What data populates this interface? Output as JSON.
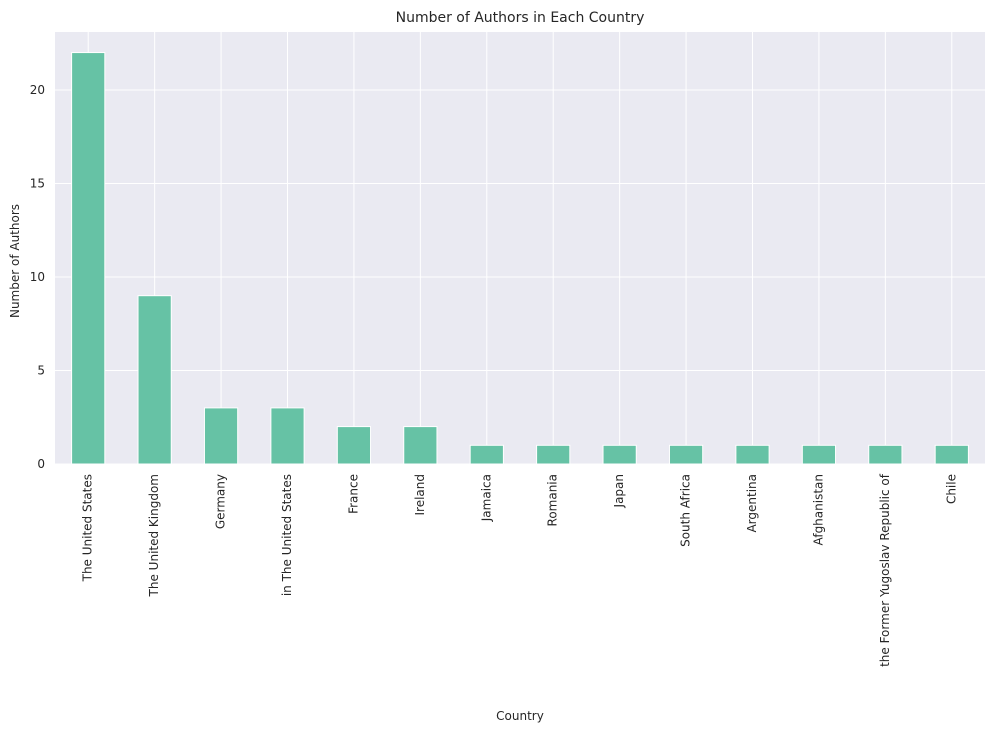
{
  "chart_data": {
    "type": "bar",
    "title": "Number of Authors in Each Country",
    "xlabel": "Country",
    "ylabel": "Number of Authors",
    "categories": [
      "The United States",
      "The United Kingdom",
      "Germany",
      "in The United States",
      "France",
      "Ireland",
      "Jamaica",
      "Romania",
      "Japan",
      "South Africa",
      "Argentina",
      "Afghanistan",
      "the Former Yugoslav Republic of",
      "Chile"
    ],
    "values": [
      22,
      9,
      3,
      3,
      2,
      2,
      1,
      1,
      1,
      1,
      1,
      1,
      1,
      1
    ],
    "ylim": [
      0,
      23.1
    ],
    "yticks": [
      0,
      5,
      10,
      15,
      20
    ],
    "grid": true,
    "bar_color": "#66c2a5",
    "background_color": "#eaeaf2",
    "grid_color": "#ffffff"
  }
}
